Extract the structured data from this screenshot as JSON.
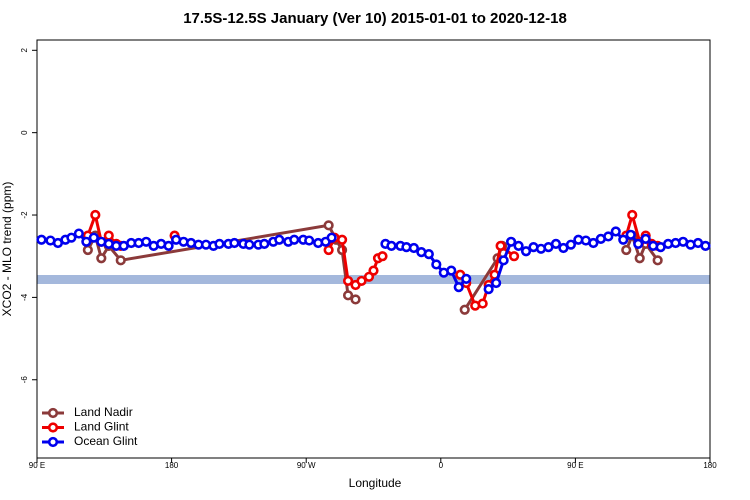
{
  "chart_data": {
    "type": "line",
    "title": "17.5S-12.5S January (Ver 10)   2015-01-01 to 2020-12-18",
    "x_label": "Longitude",
    "y_label": "XCO2 - MLO trend (ppm)",
    "xlim": [
      90,
      540
    ],
    "ylim": [
      -7.9,
      2.25
    ],
    "xticks": [
      {
        "value": 90,
        "label": "90 E"
      },
      {
        "value": 180,
        "label": "180"
      },
      {
        "value": 270,
        "label": "90 W"
      },
      {
        "value": 360,
        "label": "0"
      },
      {
        "value": 450,
        "label": "90 E"
      },
      {
        "value": 540,
        "label": "180"
      }
    ],
    "yticks": [
      2,
      0,
      -2,
      -4,
      -6
    ],
    "legend": "bottom-left",
    "series": [
      {
        "name": "Land Nadir",
        "color": "#8b3a3a",
        "x": [
          124,
          129,
          133,
          138,
          146,
          285,
          290,
          294,
          298,
          303,
          340,
          376,
          398,
          401,
          450,
          484,
          488,
          493,
          497,
          505
        ],
        "values": [
          -2.85,
          -2.5,
          -3.05,
          -2.75,
          -3.1,
          -2.25,
          -2.6,
          -2.85,
          -3.95,
          -4.05,
          null,
          -4.3,
          -3.05,
          -2.75,
          null,
          -2.85,
          -2.5,
          -3.05,
          -2.7,
          -3.1
        ]
      },
      {
        "name": "Land Glint",
        "color": "#ee0000",
        "x": [
          124,
          129,
          133,
          138,
          143,
          146,
          160,
          182,
          230,
          285,
          289,
          294,
          298,
          303,
          307,
          312,
          315,
          318,
          321,
          340,
          373,
          377,
          383,
          388,
          392,
          396,
          400,
          409,
          450,
          484,
          488,
          493,
          497,
          501,
          505
        ],
        "values": [
          -2.5,
          -2.0,
          -2.65,
          -2.5,
          -2.7,
          -2.75,
          null,
          -2.5,
          null,
          -2.85,
          -2.55,
          -2.6,
          -3.6,
          -3.7,
          -3.6,
          -3.5,
          -3.35,
          -3.05,
          -3.0,
          null,
          -3.45,
          -3.65,
          -4.2,
          -4.15,
          -3.7,
          -3.45,
          -2.75,
          -3.0,
          null,
          -2.5,
          -2.0,
          -2.65,
          -2.5,
          -2.7,
          -2.75
        ]
      },
      {
        "name": "Ocean Glint",
        "color": "#0000ee",
        "x": [
          93,
          99,
          104,
          109,
          113,
          118,
          123,
          128,
          133,
          138,
          143,
          148,
          153,
          158,
          163,
          168,
          173,
          178,
          183,
          188,
          193,
          198,
          203,
          208,
          212,
          218,
          222,
          228,
          232,
          238,
          242,
          248,
          252,
          258,
          262,
          268,
          272,
          278,
          283,
          287,
          300,
          323,
          327,
          333,
          337,
          342,
          347,
          352,
          357,
          362,
          367,
          372,
          377,
          382,
          392,
          397,
          402,
          407,
          412,
          417,
          422,
          427,
          432,
          437,
          442,
          447,
          452,
          457,
          462,
          467,
          472,
          477,
          482,
          487,
          492,
          497,
          502,
          507,
          512,
          517,
          522,
          527,
          532,
          537
        ],
        "values": [
          -2.6,
          -2.62,
          -2.68,
          -2.6,
          -2.55,
          -2.45,
          -2.65,
          -2.55,
          -2.65,
          -2.7,
          -2.75,
          -2.75,
          -2.68,
          -2.68,
          -2.65,
          -2.75,
          -2.7,
          -2.75,
          -2.6,
          -2.65,
          -2.68,
          -2.72,
          -2.72,
          -2.75,
          -2.7,
          -2.7,
          -2.68,
          -2.7,
          -2.72,
          -2.72,
          -2.7,
          -2.65,
          -2.6,
          -2.65,
          -2.6,
          -2.6,
          -2.62,
          -2.68,
          -2.65,
          -2.55,
          null,
          -2.7,
          -2.75,
          -2.75,
          -2.78,
          -2.8,
          -2.9,
          -2.95,
          -3.2,
          -3.4,
          -3.35,
          -3.75,
          -3.55,
          null,
          -3.8,
          -3.65,
          -3.1,
          -2.65,
          -2.75,
          -2.88,
          -2.78,
          -2.82,
          -2.78,
          -2.7,
          -2.8,
          -2.72,
          -2.6,
          -2.62,
          -2.68,
          -2.58,
          -2.52,
          -2.4,
          -2.6,
          -2.48,
          -2.7,
          -2.58,
          -2.75,
          -2.78,
          -2.7,
          -2.68,
          -2.65,
          -2.72,
          -2.68,
          -2.75
        ]
      }
    ]
  }
}
